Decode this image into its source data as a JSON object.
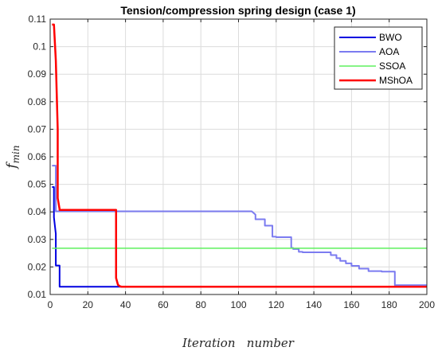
{
  "chart_data": {
    "type": "line",
    "title": "Tension/compression spring design (case 1)",
    "xlabel": "Iteration   number",
    "ylabel_main": "f",
    "ylabel_sub": "min",
    "xlim": [
      0,
      200
    ],
    "ylim": [
      0.01,
      0.11
    ],
    "xticks": [
      0,
      20,
      40,
      60,
      80,
      100,
      120,
      140,
      160,
      180,
      200
    ],
    "yticks": [
      0.01,
      0.02,
      0.03,
      0.04,
      0.05,
      0.06,
      0.07,
      0.08,
      0.09,
      0.1,
      0.11
    ],
    "ytick_labels": [
      "0.01",
      "0.02",
      "0.03",
      "0.04",
      "0.05",
      "0.06",
      "0.07",
      "0.08",
      "0.09",
      "0.1",
      "0.11"
    ],
    "grid": true,
    "legend_position": "top-right",
    "series": [
      {
        "name": "BWO",
        "color": "#0000e0",
        "width": 2,
        "x": [
          1,
          2,
          2,
          3,
          3,
          4,
          4,
          5,
          5,
          6,
          200
        ],
        "y": [
          0.049,
          0.049,
          0.038,
          0.032,
          0.0205,
          0.0205,
          0.0205,
          0.0205,
          0.0128,
          0.0128,
          0.0128
        ]
      },
      {
        "name": "AOA",
        "color": "#7b7bf0",
        "width": 2,
        "x": [
          1,
          3,
          3,
          107,
          109,
          109,
          111,
          111,
          114,
          114,
          115,
          115,
          118,
          118,
          120,
          120,
          127,
          127,
          128,
          128,
          129,
          129,
          132,
          132,
          134,
          134,
          149,
          149,
          152,
          152,
          154,
          154,
          157,
          157,
          160,
          160,
          164,
          164,
          169,
          169,
          176,
          176,
          183,
          183,
          185,
          185,
          200
        ],
        "y": [
          0.0568,
          0.0568,
          0.0402,
          0.0402,
          0.039,
          0.0373,
          0.0373,
          0.0373,
          0.0373,
          0.035,
          0.035,
          0.035,
          0.035,
          0.031,
          0.031,
          0.0308,
          0.0308,
          0.0308,
          0.0308,
          0.0269,
          0.0269,
          0.0265,
          0.0265,
          0.0255,
          0.0255,
          0.0253,
          0.0253,
          0.0243,
          0.0243,
          0.0232,
          0.0232,
          0.0222,
          0.0222,
          0.0213,
          0.0213,
          0.0204,
          0.0204,
          0.0194,
          0.0194,
          0.0185,
          0.0185,
          0.0183,
          0.0183,
          0.0134,
          0.0134,
          0.0134,
          0.0134
        ]
      },
      {
        "name": "SSOA",
        "color": "#5ef05e",
        "width": 1.5,
        "x": [
          1,
          200
        ],
        "y": [
          0.0268,
          0.0268
        ]
      },
      {
        "name": "MShOA",
        "color": "#ff0000",
        "width": 2.5,
        "x": [
          1,
          2,
          3,
          4,
          4,
          5,
          5,
          34,
          35,
          35,
          36,
          37,
          38,
          39,
          40,
          200
        ],
        "y": [
          0.108,
          0.108,
          0.095,
          0.07,
          0.045,
          0.041,
          0.0407,
          0.0407,
          0.0407,
          0.016,
          0.0135,
          0.013,
          0.0128,
          0.0128,
          0.0128,
          0.0128
        ]
      }
    ]
  }
}
